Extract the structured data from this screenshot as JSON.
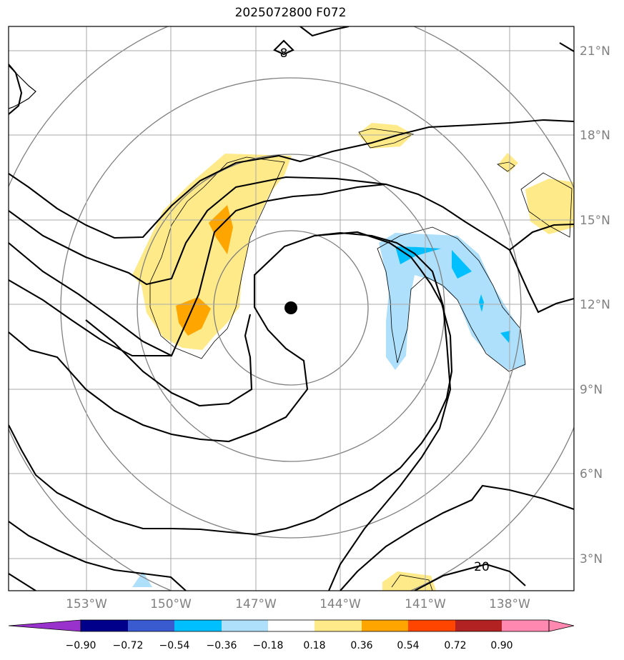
{
  "title": "2025072800 F072",
  "map": {
    "lat_labels": [
      "21°N",
      "18°N",
      "15°N",
      "12°N",
      "9°N",
      "6°N",
      "3°N"
    ],
    "lon_labels": [
      "153°W",
      "150°W",
      "147°W",
      "144°W",
      "141°W",
      "138°W"
    ],
    "contour_labels": [
      "8",
      "20"
    ],
    "center_marker": {
      "lat": 12.0,
      "lon": -145.2
    },
    "colors": {
      "grid": "#a9a9a9",
      "contour": "#000000",
      "range_rings": "#808080",
      "positive_light": "#ffea8a",
      "positive_mid": "#ffa500",
      "negative_light": "#aee0fb",
      "negative_mid": "#00bfff"
    }
  },
  "colorbar": {
    "labels": [
      "−0.90",
      "−0.72",
      "−0.54",
      "−0.36",
      "−0.18",
      "0.18",
      "0.36",
      "0.54",
      "0.72",
      "0.90"
    ],
    "colors": [
      "#9932cc",
      "#00008b",
      "#3a5bd0",
      "#00bfff",
      "#aee0fb",
      "#ffffff",
      "#ffea8a",
      "#ffa500",
      "#ff4500",
      "#b22222",
      "#ff88b0"
    ]
  }
}
